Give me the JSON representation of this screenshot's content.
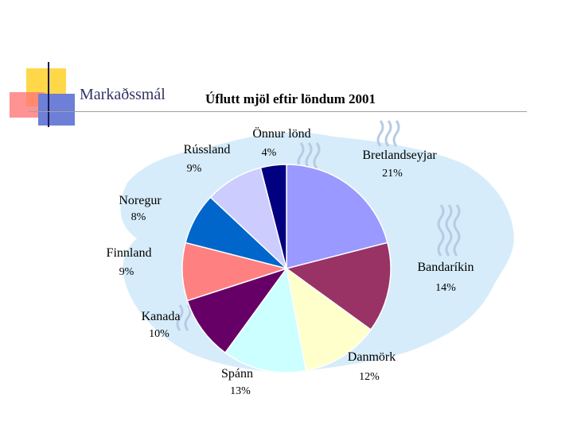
{
  "slide": {
    "section_title": "Markaðssmál",
    "colors": {
      "deco_yellow": "#ffd84a",
      "deco_red": "#ff7777",
      "deco_blue": "#6d7fd6",
      "background_map": "#d6ecfa",
      "watermark": "#b7cbe4"
    },
    "background_icons": [
      "iceland-map-shape",
      "logo-watermark-icon"
    ]
  },
  "chart_data": {
    "type": "pie",
    "title": "Úflutt mjöl eftir löndum 2001",
    "start_angle": "top",
    "direction": "clockwise",
    "slices": [
      {
        "name": "Bretlandseyjar",
        "value": 21,
        "label": "21%",
        "color": "#9999ff"
      },
      {
        "name": "Bandaríkin",
        "value": 14,
        "label": "14%",
        "color": "#993366"
      },
      {
        "name": "Danmörk",
        "value": 12,
        "label": "12%",
        "color": "#ffffcc"
      },
      {
        "name": "Spánn",
        "value": 13,
        "label": "13%",
        "color": "#ccffff"
      },
      {
        "name": "Kanada",
        "value": 10,
        "label": "10%",
        "color": "#660066"
      },
      {
        "name": "Finnland",
        "value": 9,
        "label": "9%",
        "color": "#ff8080"
      },
      {
        "name": "Noregur",
        "value": 8,
        "label": "8%",
        "color": "#0066cc"
      },
      {
        "name": "Rússland",
        "value": 9,
        "label": "9%",
        "color": "#ccccff"
      },
      {
        "name": "Önnur lönd",
        "value": 4,
        "label": "4%",
        "color": "#000080"
      }
    ]
  }
}
